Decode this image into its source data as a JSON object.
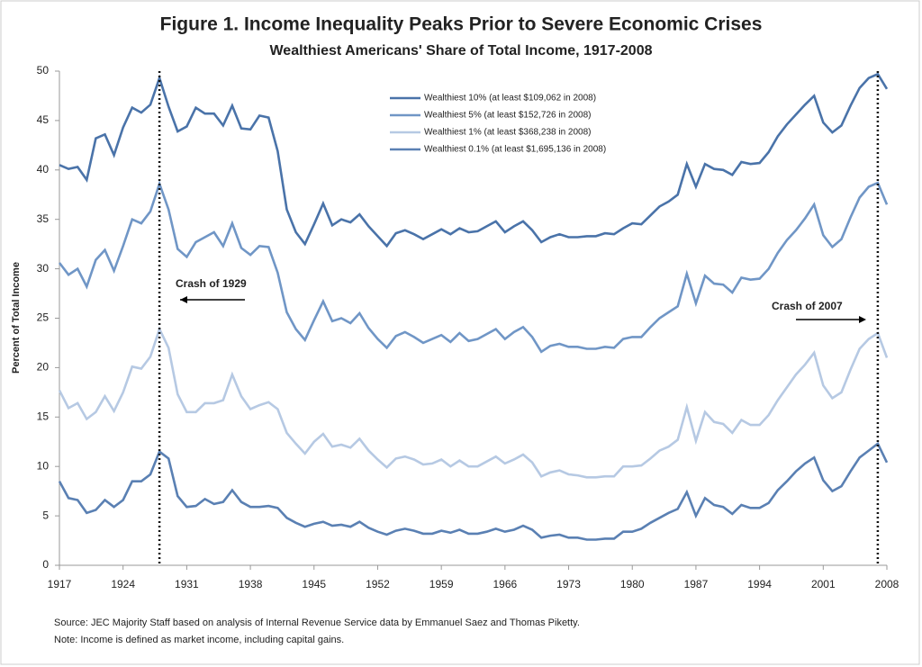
{
  "chart_data": {
    "type": "line",
    "title": "Figure 1. Income Inequality Peaks Prior to Severe Economic Crises",
    "subtitle": "Wealthiest Americans' Share of Total Income, 1917-2008",
    "y_label": "Percent of Total Income",
    "x": [
      1917,
      1918,
      1919,
      1920,
      1921,
      1922,
      1923,
      1924,
      1925,
      1926,
      1927,
      1928,
      1929,
      1930,
      1931,
      1932,
      1933,
      1934,
      1935,
      1936,
      1937,
      1938,
      1939,
      1940,
      1941,
      1942,
      1943,
      1944,
      1945,
      1946,
      1947,
      1948,
      1949,
      1950,
      1951,
      1952,
      1953,
      1954,
      1955,
      1956,
      1957,
      1958,
      1959,
      1960,
      1961,
      1962,
      1963,
      1964,
      1965,
      1966,
      1967,
      1968,
      1969,
      1970,
      1971,
      1972,
      1973,
      1974,
      1975,
      1976,
      1977,
      1978,
      1979,
      1980,
      1981,
      1982,
      1983,
      1984,
      1985,
      1986,
      1987,
      1988,
      1989,
      1990,
      1991,
      1992,
      1993,
      1994,
      1995,
      1996,
      1997,
      1998,
      1999,
      2000,
      2001,
      2002,
      2003,
      2004,
      2005,
      2006,
      2007,
      2008
    ],
    "series": [
      {
        "name": "Wealthiest 10% (at least $109,062 in 2008)",
        "color": "#4a73a9",
        "values": [
          40.5,
          40.1,
          40.3,
          39.0,
          43.2,
          43.6,
          41.5,
          44.3,
          46.3,
          45.8,
          46.6,
          49.3,
          46.4,
          43.9,
          44.4,
          46.3,
          45.7,
          45.7,
          44.5,
          46.5,
          44.2,
          44.1,
          45.5,
          45.3,
          41.9,
          36.0,
          33.7,
          32.5,
          34.5,
          36.6,
          34.4,
          35.0,
          34.7,
          35.5,
          34.3,
          33.3,
          32.3,
          33.6,
          33.9,
          33.5,
          33.0,
          33.5,
          34.0,
          33.5,
          34.1,
          33.7,
          33.8,
          34.3,
          34.8,
          33.7,
          34.3,
          34.8,
          33.9,
          32.7,
          33.2,
          33.5,
          33.2,
          33.2,
          33.3,
          33.3,
          33.6,
          33.5,
          34.1,
          34.6,
          34.5,
          35.4,
          36.3,
          36.8,
          37.5,
          40.6,
          38.3,
          40.6,
          40.1,
          40.0,
          39.5,
          40.8,
          40.6,
          40.7,
          41.8,
          43.4,
          44.6,
          45.6,
          46.6,
          47.5,
          44.8,
          43.8,
          44.5,
          46.5,
          48.3,
          49.3,
          49.7,
          48.2
        ]
      },
      {
        "name": "Wealthiest 5% (at least $152,726 in 2008)",
        "color": "#7096c6",
        "values": [
          30.6,
          29.4,
          30.0,
          28.2,
          30.9,
          31.9,
          29.8,
          32.3,
          35.0,
          34.6,
          35.8,
          38.6,
          36.0,
          32.0,
          31.2,
          32.7,
          33.2,
          33.7,
          32.3,
          34.6,
          32.1,
          31.4,
          32.3,
          32.2,
          29.6,
          25.6,
          23.9,
          22.8,
          24.8,
          26.7,
          24.7,
          25.0,
          24.5,
          25.5,
          24.0,
          22.9,
          22.0,
          23.2,
          23.6,
          23.1,
          22.5,
          22.9,
          23.3,
          22.6,
          23.5,
          22.7,
          22.9,
          23.4,
          23.9,
          22.9,
          23.6,
          24.1,
          23.1,
          21.6,
          22.2,
          22.4,
          22.1,
          22.1,
          21.9,
          21.9,
          22.1,
          22.0,
          22.9,
          23.1,
          23.1,
          24.1,
          25.0,
          25.6,
          26.2,
          29.5,
          26.5,
          29.3,
          28.5,
          28.4,
          27.6,
          29.1,
          28.9,
          29.0,
          30.0,
          31.6,
          32.9,
          33.9,
          35.1,
          36.5,
          33.4,
          32.2,
          33.0,
          35.2,
          37.2,
          38.3,
          38.7,
          36.5
        ]
      },
      {
        "name": "Wealthiest 1% (at least $368,238 in 2008)",
        "color": "#b6c9e3",
        "values": [
          17.7,
          15.9,
          16.4,
          14.8,
          15.5,
          17.1,
          15.6,
          17.5,
          20.1,
          19.9,
          21.1,
          23.9,
          22.0,
          17.3,
          15.5,
          15.5,
          16.4,
          16.4,
          16.7,
          19.3,
          17.1,
          15.8,
          16.2,
          16.5,
          15.8,
          13.4,
          12.3,
          11.3,
          12.5,
          13.3,
          12.0,
          12.2,
          11.9,
          12.8,
          11.6,
          10.7,
          9.9,
          10.8,
          11.0,
          10.7,
          10.2,
          10.3,
          10.7,
          10.0,
          10.6,
          10.0,
          10.0,
          10.5,
          11.0,
          10.3,
          10.7,
          11.2,
          10.4,
          9.0,
          9.4,
          9.6,
          9.2,
          9.1,
          8.9,
          8.9,
          9.0,
          9.0,
          10.0,
          10.0,
          10.1,
          10.8,
          11.6,
          12.0,
          12.7,
          16.0,
          12.6,
          15.5,
          14.5,
          14.3,
          13.4,
          14.7,
          14.2,
          14.2,
          15.2,
          16.7,
          18.0,
          19.3,
          20.3,
          21.5,
          18.2,
          16.9,
          17.5,
          19.8,
          21.9,
          22.9,
          23.5,
          21.0
        ]
      },
      {
        "name": "Wealthiest 0.1% (at least $1,695,136 in 2008)",
        "color": "#5a80b3",
        "values": [
          8.5,
          6.8,
          6.6,
          5.3,
          5.6,
          6.6,
          5.9,
          6.6,
          8.5,
          8.5,
          9.2,
          11.5,
          10.8,
          7.0,
          5.9,
          6.0,
          6.7,
          6.2,
          6.4,
          7.6,
          6.4,
          5.9,
          5.9,
          6.0,
          5.8,
          4.8,
          4.3,
          3.9,
          4.2,
          4.4,
          4.0,
          4.1,
          3.9,
          4.4,
          3.8,
          3.4,
          3.1,
          3.5,
          3.7,
          3.5,
          3.2,
          3.2,
          3.5,
          3.3,
          3.6,
          3.2,
          3.2,
          3.4,
          3.7,
          3.4,
          3.6,
          4.0,
          3.6,
          2.8,
          3.0,
          3.1,
          2.8,
          2.8,
          2.6,
          2.6,
          2.7,
          2.7,
          3.4,
          3.4,
          3.7,
          4.3,
          4.8,
          5.3,
          5.7,
          7.4,
          5.0,
          6.8,
          6.1,
          5.9,
          5.2,
          6.1,
          5.8,
          5.8,
          6.3,
          7.6,
          8.5,
          9.5,
          10.3,
          10.9,
          8.6,
          7.5,
          8.0,
          9.5,
          10.9,
          11.6,
          12.3,
          10.4
        ]
      }
    ],
    "xlim": [
      1917,
      2008
    ],
    "xticks": [
      1917,
      1924,
      1931,
      1938,
      1945,
      1952,
      1959,
      1966,
      1973,
      1980,
      1987,
      1994,
      2001,
      2008
    ],
    "ylim": [
      0,
      50
    ],
    "yticks": [
      0,
      5,
      10,
      15,
      20,
      25,
      30,
      35,
      40,
      45,
      50
    ],
    "reference_lines": [
      1928,
      2007
    ],
    "annotations": [
      "Crash of 1929",
      "Crash of 2007"
    ],
    "legend_position": "top",
    "source": "Source: JEC Majority Staff based on analysis of Internal Revenue Service data by Emmanuel Saez and Thomas Piketty.",
    "note": "Note: Income is defined as market income, including capital gains."
  }
}
